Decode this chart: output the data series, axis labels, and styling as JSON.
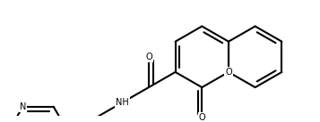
{
  "bg_color": "#ffffff",
  "line_color": "#000000",
  "lw": 1.5,
  "figsize": [
    3.57,
    1.37
  ],
  "dpi": 100,
  "BL": 0.38,
  "xlim": [
    0,
    3.57
  ],
  "ylim": [
    0,
    1.37
  ]
}
